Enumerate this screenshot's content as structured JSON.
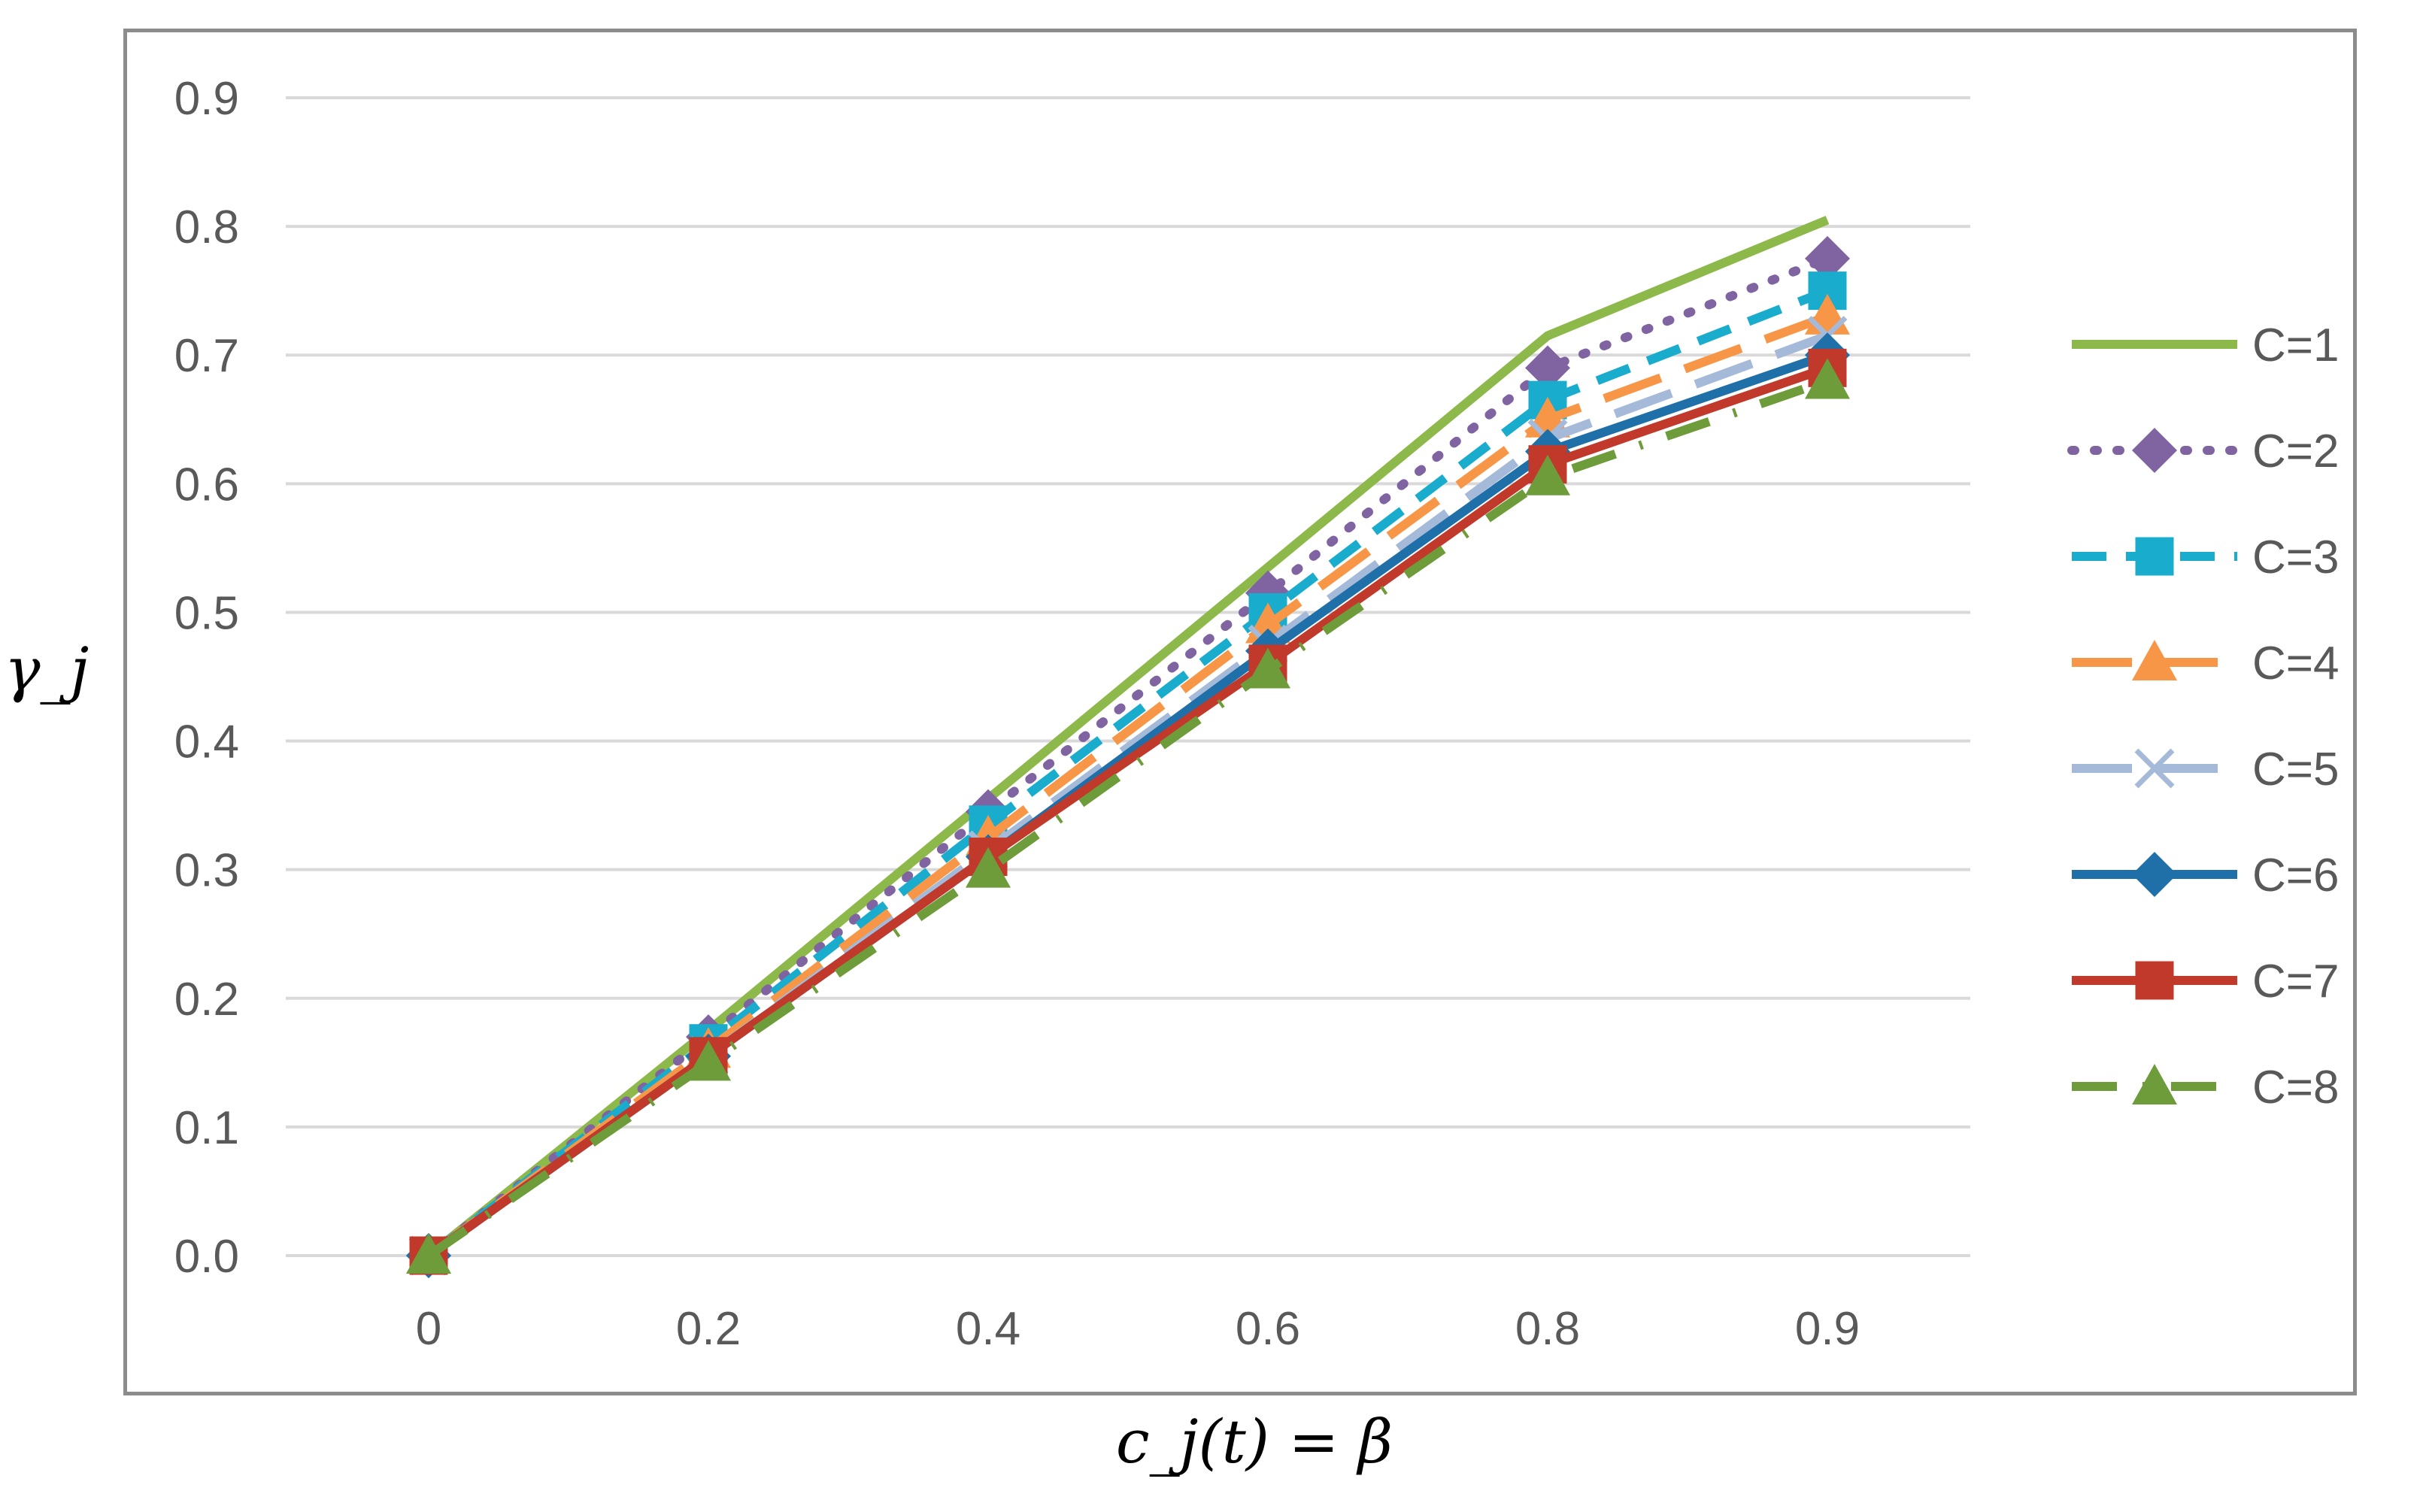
{
  "chart_data": {
    "type": "line",
    "xlabel": "c_j(t) = β",
    "ylabel": "γ_j",
    "categories": [
      "0",
      "0.2",
      "0.4",
      "0.6",
      "0.8",
      "0.9"
    ],
    "y_ticks": [
      "0.0",
      "0.1",
      "0.2",
      "0.3",
      "0.4",
      "0.5",
      "0.6",
      "0.7",
      "0.8",
      "0.9"
    ],
    "ylim": [
      0,
      0.9
    ],
    "grid": "horizontal",
    "legend": "right",
    "series": [
      {
        "name": "C=1",
        "values": [
          0,
          0.175,
          0.355,
          0.535,
          0.715,
          0.805
        ],
        "color": "#8db84a",
        "dash": "solid",
        "marker": "none"
      },
      {
        "name": "C=2",
        "values": [
          0,
          0.17,
          0.345,
          0.515,
          0.69,
          0.775
        ],
        "color": "#8064a2",
        "dash": "dot",
        "marker": "diamond"
      },
      {
        "name": "C=3",
        "values": [
          0,
          0.165,
          0.335,
          0.5,
          0.665,
          0.75
        ],
        "color": "#1aaccc",
        "dash": "dash",
        "marker": "square"
      },
      {
        "name": "C=4",
        "values": [
          0,
          0.16,
          0.325,
          0.49,
          0.65,
          0.73
        ],
        "color": "#f79646",
        "dash": "longdash",
        "marker": "triangle"
      },
      {
        "name": "C=5",
        "values": [
          0,
          0.155,
          0.315,
          0.475,
          0.635,
          0.715
        ],
        "color": "#a5b9d9",
        "dash": "longdash",
        "marker": "x"
      },
      {
        "name": "C=6",
        "values": [
          0,
          0.155,
          0.31,
          0.47,
          0.625,
          0.7
        ],
        "color": "#1f6fa8",
        "dash": "solid",
        "marker": "diamond"
      },
      {
        "name": "C=7",
        "values": [
          0,
          0.155,
          0.31,
          0.46,
          0.615,
          0.69
        ],
        "color": "#c0392b",
        "dash": "solid",
        "marker": "square"
      },
      {
        "name": "C=8",
        "values": [
          0,
          0.15,
          0.3,
          0.455,
          0.605,
          0.68
        ],
        "color": "#6e9c3a",
        "dash": "dashdot",
        "marker": "triangle"
      }
    ]
  }
}
